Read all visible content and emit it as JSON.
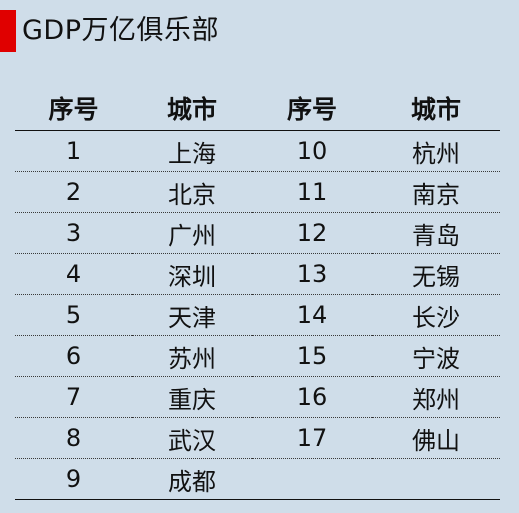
{
  "title": "GDP万亿俱乐部",
  "colors": {
    "background": "#cfdde9",
    "accent": "#e00000"
  },
  "headers": [
    "序号",
    "城市",
    "序号",
    "城市"
  ],
  "rows": [
    [
      "1",
      "上海",
      "10",
      "杭州"
    ],
    [
      "2",
      "北京",
      "11",
      "南京"
    ],
    [
      "3",
      "广州",
      "12",
      "青岛"
    ],
    [
      "4",
      "深圳",
      "13",
      "无锡"
    ],
    [
      "5",
      "天津",
      "14",
      "长沙"
    ],
    [
      "6",
      "苏州",
      "15",
      "宁波"
    ],
    [
      "7",
      "重庆",
      "16",
      "郑州"
    ],
    [
      "8",
      "武汉",
      "17",
      "佛山"
    ],
    [
      "9",
      "成都",
      "",
      ""
    ]
  ]
}
